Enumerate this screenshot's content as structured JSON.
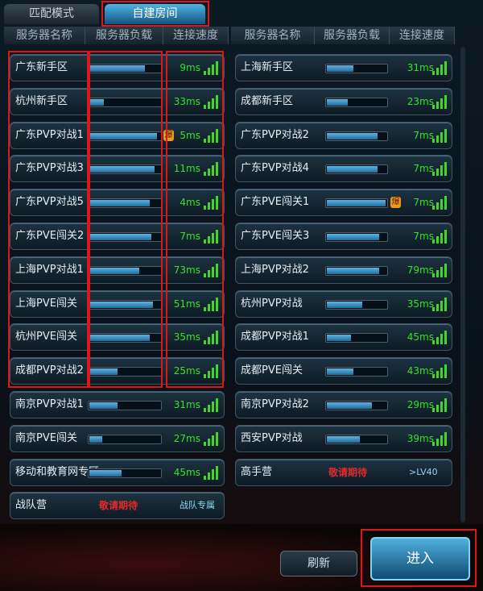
{
  "tabs": [
    "匹配模式",
    "自建房间"
  ],
  "columns": [
    "服务器名称",
    "服务器负载",
    "连接速度"
  ],
  "left_servers": [
    {
      "name": "广东新手区",
      "load": 78,
      "ping": "9ms"
    },
    {
      "name": "杭州新手区",
      "load": 20,
      "ping": "33ms"
    },
    {
      "name": "广东PVP对战1",
      "load": 95,
      "ping": "5ms",
      "badge": "爆"
    },
    {
      "name": "广东PVP对战3",
      "load": 92,
      "ping": "11ms"
    },
    {
      "name": "广东PVP对战5",
      "load": 85,
      "ping": "4ms"
    },
    {
      "name": "广东PVE闯关2",
      "load": 88,
      "ping": "7ms"
    },
    {
      "name": "上海PVP对战1",
      "load": 70,
      "ping": "73ms"
    },
    {
      "name": "上海PVE闯关",
      "load": 90,
      "ping": "51ms"
    },
    {
      "name": "杭州PVE闯关",
      "load": 85,
      "ping": "35ms"
    },
    {
      "name": "成都PVP对战2",
      "load": 40,
      "ping": "25ms"
    },
    {
      "name": "南京PVP对战1",
      "load": 40,
      "ping": "31ms"
    },
    {
      "name": "南京PVE闯关",
      "load": 18,
      "ping": "27ms"
    },
    {
      "name": "移动和教育网专区",
      "load": 45,
      "ping": "45ms"
    }
  ],
  "left_special": {
    "name": "战队营",
    "status": "敬请期待",
    "tag": "战队专属"
  },
  "right_servers": [
    {
      "name": "上海新手区",
      "load": 45,
      "ping": "31ms"
    },
    {
      "name": "成都新手区",
      "load": 35,
      "ping": "23ms"
    },
    {
      "name": "广东PVP对战2",
      "load": 85,
      "ping": "7ms"
    },
    {
      "name": "广东PVP对战4",
      "load": 85,
      "ping": "7ms"
    },
    {
      "name": "广东PVE闯关1",
      "load": 98,
      "ping": "7ms",
      "badge": "爆"
    },
    {
      "name": "广东PVE闯关3",
      "load": 88,
      "ping": "7ms"
    },
    {
      "name": "上海PVP对战2",
      "load": 88,
      "ping": "79ms"
    },
    {
      "name": "杭州PVP对战",
      "load": 60,
      "ping": "35ms"
    },
    {
      "name": "成都PVP对战1",
      "load": 40,
      "ping": "45ms"
    },
    {
      "name": "成都PVE闯关",
      "load": 45,
      "ping": "43ms"
    },
    {
      "name": "南京PVP对战2",
      "load": 75,
      "ping": "29ms"
    },
    {
      "name": "西安PVP对战",
      "load": 55,
      "ping": "39ms"
    }
  ],
  "right_special": {
    "name": "高手营",
    "status": "敬请期待",
    "tag": ">LV40"
  },
  "buttons": {
    "refresh": "刷新",
    "enter": "进入"
  }
}
